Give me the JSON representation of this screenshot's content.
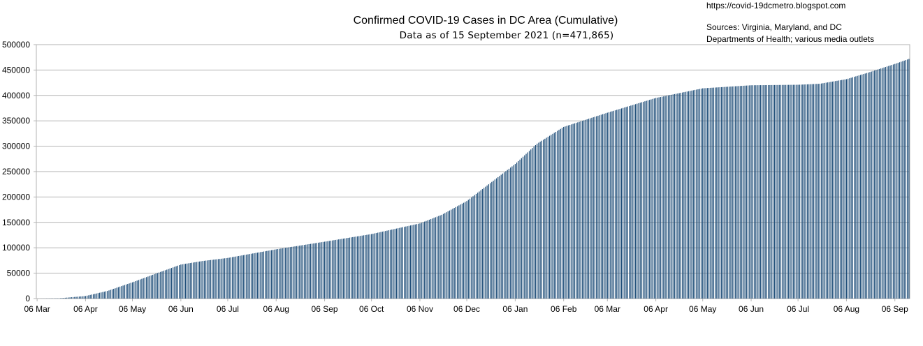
{
  "chart_data": {
    "type": "bar",
    "title": "Confirmed COVID-19 Cases in DC Area (Cumulative)",
    "subtitle": "Data as of 15 September 2021 (n=471,865)",
    "notes": {
      "url": "https://covid-19dcmetro.blogspot.com",
      "sources_line1": "Sources: Virginia, Maryland, and DC",
      "sources_line2": "Departments of Health; various media outlets"
    },
    "x_tick_labels": [
      "06 Mar",
      "06 Apr",
      "06 May",
      "06 Jun",
      "06 Jul",
      "06 Aug",
      "06 Sep",
      "06 Oct",
      "06 Nov",
      "06 Dec",
      "06 Jan",
      "06 Feb",
      "06 Mar",
      "06 Apr",
      "06 May",
      "06 Jun",
      "06 Jul",
      "06 Aug",
      "06 Sep"
    ],
    "y_tick_labels": [
      "0",
      "50000",
      "100000",
      "150000",
      "200000",
      "250000",
      "300000",
      "350000",
      "400000",
      "450000",
      "500000"
    ],
    "ylim": [
      0,
      500000
    ],
    "grid": true,
    "bar_color": "#1f4e79",
    "series": [
      {
        "frequency": "daily",
        "x_start": "06 Mar 2020",
        "x_end": "15 Sep 2021",
        "anchor_values": [
          [
            "06 Mar 2020",
            0
          ],
          [
            "20 Mar 2020",
            500
          ],
          [
            "06 Apr 2020",
            5000
          ],
          [
            "20 Apr 2020",
            15000
          ],
          [
            "06 May 2020",
            32000
          ],
          [
            "20 May 2020",
            48000
          ],
          [
            "06 Jun 2020",
            67000
          ],
          [
            "20 Jun 2020",
            74000
          ],
          [
            "06 Jul 2020",
            80000
          ],
          [
            "06 Aug 2020",
            97000
          ],
          [
            "06 Sep 2020",
            112000
          ],
          [
            "06 Oct 2020",
            127000
          ],
          [
            "06 Nov 2020",
            148000
          ],
          [
            "20 Nov 2020",
            165000
          ],
          [
            "06 Dec 2020",
            192000
          ],
          [
            "20 Dec 2020",
            225000
          ],
          [
            "06 Jan 2021",
            265000
          ],
          [
            "20 Jan 2021",
            305000
          ],
          [
            "06 Feb 2021",
            338000
          ],
          [
            "20 Feb 2021",
            352000
          ],
          [
            "06 Mar 2021",
            366000
          ],
          [
            "06 Apr 2021",
            395000
          ],
          [
            "06 May 2021",
            414000
          ],
          [
            "06 Jun 2021",
            420000
          ],
          [
            "06 Jul 2021",
            421000
          ],
          [
            "20 Jul 2021",
            423000
          ],
          [
            "06 Aug 2021",
            432000
          ],
          [
            "20 Aug 2021",
            445000
          ],
          [
            "06 Sep 2021",
            462000
          ],
          [
            "15 Sep 2021",
            471865
          ]
        ]
      }
    ]
  }
}
